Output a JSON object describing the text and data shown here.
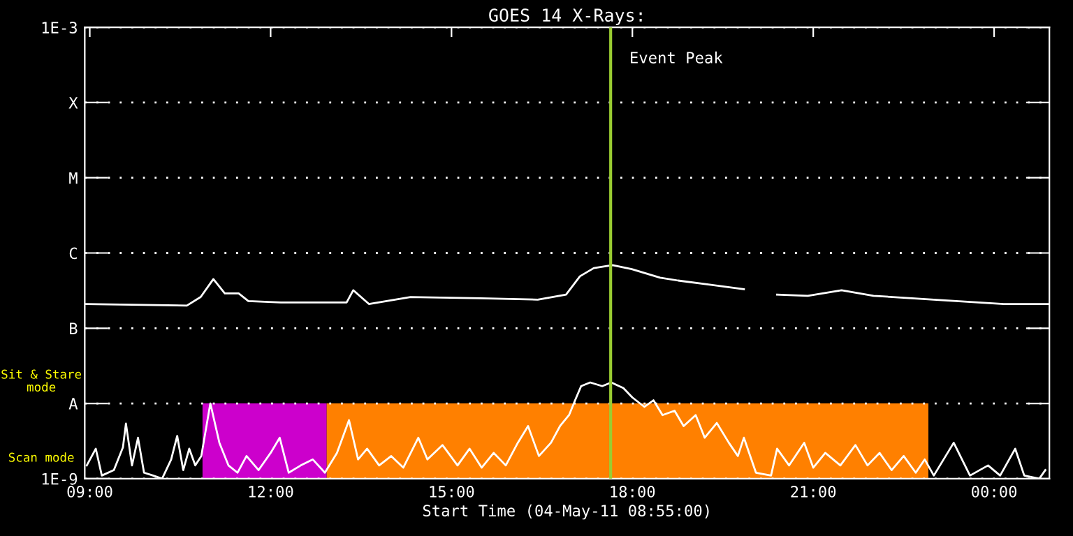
{
  "chart_data": {
    "type": "line",
    "title": "GOES 14 X-Rays:",
    "xlabel": "Start Time (04-May-11 08:55:00)",
    "log": "y",
    "grid": "y",
    "marker": "none",
    "line_style": "solid",
    "xlim": [
      8.917,
      24.917
    ],
    "xticks": [
      {
        "value": 9,
        "label": "09:00"
      },
      {
        "value": 12,
        "label": "12:00"
      },
      {
        "value": 15,
        "label": "15:00"
      },
      {
        "value": 18,
        "label": "18:00"
      },
      {
        "value": 21,
        "label": "21:00"
      },
      {
        "value": 24,
        "label": "00:00"
      }
    ],
    "ylim": [
      1e-09,
      0.001
    ],
    "yticks": [
      {
        "value": 0.001,
        "label": "1E-3"
      },
      {
        "value": 0.0001,
        "label": "X"
      },
      {
        "value": 1e-05,
        "label": "M"
      },
      {
        "value": 1e-06,
        "label": "C"
      },
      {
        "value": 1e-07,
        "label": "B"
      },
      {
        "value": 1e-08,
        "label": "A"
      },
      {
        "value": 1e-09,
        "label": "1E-9"
      }
    ],
    "series": [
      {
        "color": "#ffffff",
        "x": [
          8.94,
          10.61,
          10.84,
          11.05,
          11.24,
          11.47,
          11.63,
          12.17,
          13.26,
          13.37,
          13.63,
          14.32,
          15.48,
          16.43,
          16.9,
          17.13,
          17.36,
          17.67,
          17.99,
          18.46,
          18.76,
          19.85,
          20.1,
          20.4,
          20.91,
          21.47,
          22.0,
          23.0,
          24.16,
          24.9
        ],
        "values": [
          2.1e-07,
          2e-07,
          2.6e-07,
          4.5e-07,
          2.9e-07,
          2.9e-07,
          2.3e-07,
          2.2e-07,
          2.2e-07,
          3.2e-07,
          2.1e-07,
          2.6e-07,
          2.5e-07,
          2.4e-07,
          2.8e-07,
          4.9e-07,
          6.3e-07,
          6.9e-07,
          6.1e-07,
          4.7e-07,
          4.3e-07,
          3.3e-07,
          null,
          2.8e-07,
          2.7e-07,
          3.2e-07,
          2.7e-07,
          2.4e-07,
          2.1e-07,
          2.1e-07
        ]
      },
      {
        "color": "#ffffff",
        "x": [
          8.95,
          9.1,
          9.2,
          9.4,
          9.55,
          9.6,
          9.7,
          9.8,
          9.9,
          10.05,
          10.2,
          10.35,
          10.45,
          10.55,
          10.65,
          10.75,
          10.85,
          11.0,
          11.15,
          11.3,
          11.45,
          11.6,
          11.8,
          12.0,
          12.15,
          12.3,
          12.5,
          12.7,
          12.9,
          13.1,
          13.3,
          13.45,
          13.6,
          13.8,
          14.0,
          14.2,
          14.45,
          14.6,
          14.85,
          15.1,
          15.3,
          15.5,
          15.7,
          15.9,
          16.1,
          16.27,
          16.45,
          16.65,
          16.8,
          16.95,
          17.05,
          17.15,
          17.3,
          17.5,
          17.65,
          17.85,
          18.0,
          18.2,
          18.35,
          18.5,
          18.7,
          18.85,
          19.05,
          19.2,
          19.4,
          19.6,
          19.75,
          19.85,
          20.05,
          20.3,
          20.4,
          20.6,
          20.85,
          21.0,
          21.2,
          21.45,
          21.7,
          21.9,
          22.1,
          22.3,
          22.5,
          22.7,
          22.85,
          23.0,
          23.33,
          23.6,
          23.9,
          24.1,
          24.35,
          24.5,
          24.75,
          24.85
        ],
        "values": [
          1.5e-09,
          2.5e-09,
          1.1e-09,
          1.3e-09,
          2.6e-09,
          5.4e-09,
          1.5e-09,
          3.5e-09,
          1.2e-09,
          1.1e-09,
          1e-09,
          1.8e-09,
          3.7e-09,
          1.3e-09,
          2.5e-09,
          1.5e-09,
          2e-09,
          1e-08,
          3e-09,
          1.5e-09,
          1.2e-09,
          2e-09,
          1.3e-09,
          2.2e-09,
          3.5e-09,
          1.2e-09,
          1.5e-09,
          1.8e-09,
          1.2e-09,
          2.2e-09,
          6e-09,
          1.8e-09,
          2.5e-09,
          1.5e-09,
          2e-09,
          1.4e-09,
          3.5e-09,
          1.8e-09,
          2.8e-09,
          1.5e-09,
          2.5e-09,
          1.4e-09,
          2.2e-09,
          1.5e-09,
          3e-09,
          5e-09,
          2e-09,
          3e-09,
          5e-09,
          7e-09,
          1.1e-08,
          1.7e-08,
          1.9e-08,
          1.7e-08,
          1.9e-08,
          1.6e-08,
          1.2e-08,
          9e-09,
          1.1e-08,
          7e-09,
          8e-09,
          5e-09,
          7e-09,
          3.5e-09,
          5.5e-09,
          3e-09,
          2e-09,
          3.5e-09,
          1.2e-09,
          1.1e-09,
          2.5e-09,
          1.5e-09,
          3e-09,
          1.4e-09,
          2.2e-09,
          1.5e-09,
          2.8e-09,
          1.5e-09,
          2.2e-09,
          1.3e-09,
          2e-09,
          1.2e-09,
          1.8e-09,
          1.1e-09,
          3e-09,
          1.1e-09,
          1.5e-09,
          1.1e-09,
          2.5e-09,
          1.1e-09,
          1e-09,
          1.3e-09
        ]
      }
    ],
    "ref_lines": [
      {
        "axis": "x",
        "value": 17.64,
        "label": "Event Peak",
        "color": "#9acd32"
      }
    ],
    "bands": [
      {
        "axis": "x",
        "from": 10.87,
        "to": 12.93,
        "color": "#cc00cc"
      },
      {
        "axis": "x",
        "from": 12.93,
        "to": 22.91,
        "color": "#ff8000"
      }
    ],
    "annotations": [
      "Sit & Stare\nmode",
      "Scan mode"
    ]
  }
}
